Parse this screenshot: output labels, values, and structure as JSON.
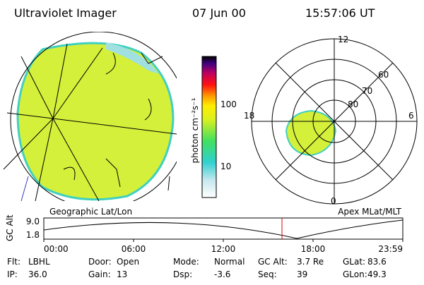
{
  "header": {
    "instrument": "Ultraviolet Imager",
    "date": "07 Jun 00",
    "time": "15:57:06 UT"
  },
  "colorbar": {
    "label": "photon cm⁻²s⁻¹",
    "ticks": [
      "100",
      "10"
    ]
  },
  "polar": {
    "mlt_labels": [
      "12",
      "18",
      "6",
      "0"
    ],
    "mlat_labels": [
      "60",
      "70",
      "80"
    ]
  },
  "map_labels": {
    "left": "Geographic Lat/Lon",
    "right": "Apex MLat/MLT"
  },
  "altitude": {
    "axis_label": "GC Alt",
    "yticks": [
      "9.0",
      "1.8"
    ],
    "xticks": [
      "00:00",
      "06:00",
      "12:00",
      "18:00",
      "23:59"
    ]
  },
  "footer": [
    [
      {
        "label": "Flt:",
        "value": "LBHL"
      },
      {
        "label": "Door:",
        "value": "Open"
      },
      {
        "label": "Mode:",
        "value": "Normal"
      },
      {
        "label": "GC Alt:",
        "value": "3.7 Re"
      },
      {
        "label": "GLat:",
        "value": "83.6"
      }
    ],
    [
      {
        "label": "IP:",
        "value": "36.0"
      },
      {
        "label": "Gain:",
        "value": "13"
      },
      {
        "label": "Dsp:",
        "value": "-3.6"
      },
      {
        "label": "Seq:",
        "value": "39"
      },
      {
        "label": "GLon:",
        "value": "49.3"
      }
    ]
  ]
}
